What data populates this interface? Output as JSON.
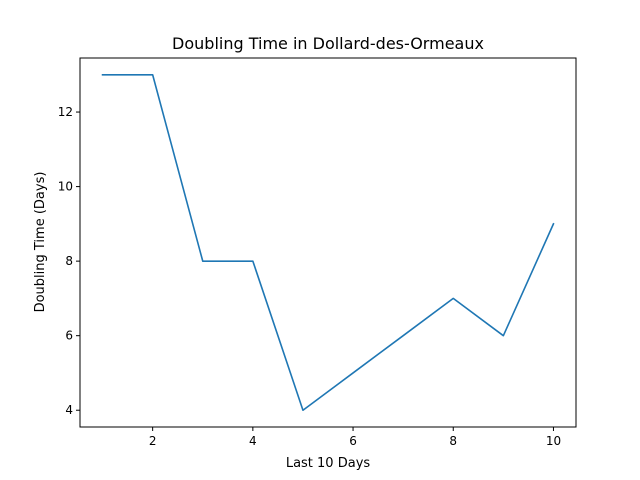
{
  "chart_data": {
    "type": "line",
    "title": "Doubling Time in  Dollard-des-Ormeaux",
    "xlabel": "Last 10 Days",
    "ylabel": "Doubling Time (Days)",
    "x": [
      1,
      2,
      3,
      4,
      5,
      6,
      7,
      8,
      9,
      10
    ],
    "series": [
      {
        "values": [
          13,
          13,
          8,
          8,
          4,
          5,
          6,
          7,
          6,
          9
        ],
        "color": "#1f77b4"
      }
    ],
    "xlim": [
      0.55,
      10.45
    ],
    "ylim": [
      3.55,
      13.45
    ],
    "xticks": [
      2,
      4,
      6,
      8,
      10
    ],
    "yticks": [
      4,
      6,
      8,
      10,
      12
    ],
    "xtick_labels": [
      "2",
      "4",
      "6",
      "8",
      "10"
    ],
    "ytick_labels": [
      "4",
      "6",
      "8",
      "10",
      "12"
    ],
    "grid": false,
    "legend": "none"
  }
}
